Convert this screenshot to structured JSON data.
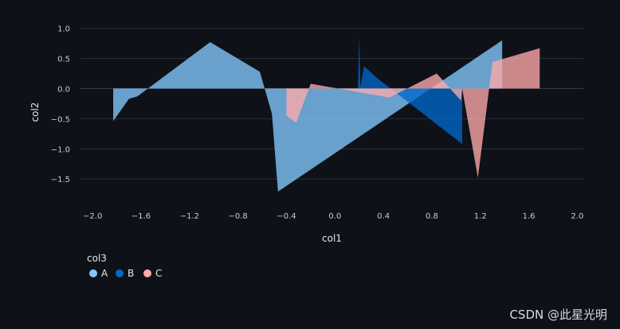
{
  "chart_data": {
    "type": "area",
    "xlabel": "col1",
    "ylabel": "col2",
    "xlim": [
      -2.1,
      2.05
    ],
    "ylim": [
      -1.88,
      1.1
    ],
    "x_ticks": [
      -2.0,
      -1.6,
      -1.2,
      -0.8,
      -0.4,
      0.0,
      0.4,
      0.8,
      1.2,
      1.6,
      2.0
    ],
    "x_tick_labels": [
      "−2.0",
      "−1.6",
      "−1.2",
      "−0.8",
      "−0.4",
      "0.0",
      "0.4",
      "0.8",
      "1.2",
      "1.6",
      "2.0"
    ],
    "y_ticks": [
      1.0,
      0.5,
      0.0,
      -0.5,
      -1.0,
      -1.5
    ],
    "y_tick_labels": [
      "1.0",
      "0.5",
      "0.0",
      "−0.5",
      "−1.0",
      "−1.5"
    ],
    "grid": true,
    "legend": {
      "title": "col3",
      "placement": "bottom-left"
    },
    "series": [
      {
        "name": "A",
        "color": "#83c9ff",
        "x": [
          -1.83,
          -1.7,
          -1.63,
          -1.03,
          -0.62,
          -0.52,
          -0.47,
          1.38
        ],
        "y": [
          -0.54,
          -0.17,
          -0.13,
          0.77,
          0.28,
          -0.42,
          -1.71,
          0.8
        ]
      },
      {
        "name": "B",
        "color": "#0068c9",
        "x": [
          0.19,
          0.2,
          0.21,
          0.24,
          0.35,
          1.05
        ],
        "y": [
          0.0,
          0.88,
          0.03,
          0.37,
          0.17,
          -0.92
        ]
      },
      {
        "name": "C",
        "color": "#ffabab",
        "x": [
          -0.4,
          -0.32,
          -0.2,
          0.45,
          0.84,
          1.04,
          1.05,
          1.18,
          1.3,
          1.69
        ],
        "y": [
          -0.45,
          -0.57,
          0.08,
          -0.15,
          0.25,
          -0.2,
          0.0,
          -1.48,
          0.44,
          0.67
        ]
      }
    ]
  },
  "watermark": "CSDN @此星光明"
}
